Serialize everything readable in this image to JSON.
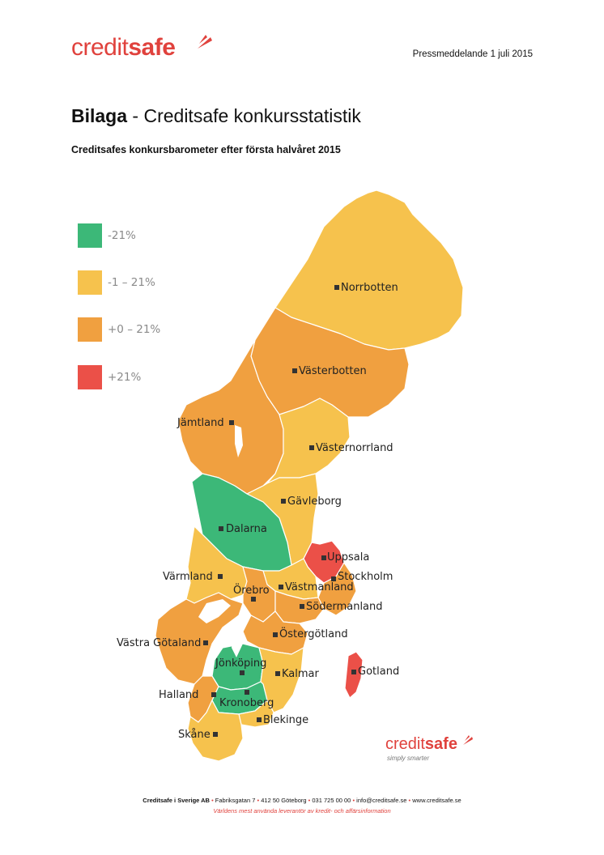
{
  "header": {
    "logo_regular": "credit",
    "logo_bold": "safe",
    "press_release": "Pressmeddelande 1 juli 2015"
  },
  "title": {
    "bold": "Bilaga",
    "rest": " - Creditsafe konkursstatistik"
  },
  "subtitle": "Creditsafes konkursbarometer efter första halvåret 2015",
  "colors": {
    "green": "#3cb878",
    "yellow": "#f6c24d",
    "orange": "#f0a040",
    "red": "#eb5048",
    "brand": "#e0423d"
  },
  "legend": [
    {
      "label": "-21%",
      "color": "#3cb878"
    },
    {
      "label": "-1 – 21%",
      "color": "#f6c24d"
    },
    {
      "label": "+0 – 21%",
      "color": "#f0a040"
    },
    {
      "label": "+21%",
      "color": "#eb5048"
    }
  ],
  "regions": [
    {
      "name": "Norrbotten",
      "category": "-1 – 21%"
    },
    {
      "name": "Västerbotten",
      "category": "+0 – 21%"
    },
    {
      "name": "Jämtland",
      "category": "+0 – 21%"
    },
    {
      "name": "Västernorrland",
      "category": "-1 – 21%"
    },
    {
      "name": "Gävleborg",
      "category": "-1 – 21%"
    },
    {
      "name": "Dalarna",
      "category": "-21%"
    },
    {
      "name": "Uppsala",
      "category": "+21%"
    },
    {
      "name": "Värmland",
      "category": "-1 – 21%"
    },
    {
      "name": "Stockholm",
      "category": "+0 – 21%"
    },
    {
      "name": "Örebro",
      "category": "+0 – 21%"
    },
    {
      "name": "Västmanland",
      "category": "-1 – 21%"
    },
    {
      "name": "Södermanland",
      "category": "+0 – 21%"
    },
    {
      "name": "Västra Götaland",
      "category": "+0 – 21%"
    },
    {
      "name": "Östergötland",
      "category": "+0 – 21%"
    },
    {
      "name": "Jönköping",
      "category": "-21%"
    },
    {
      "name": "Kalmar",
      "category": "-1 – 21%"
    },
    {
      "name": "Gotland",
      "category": "+21%"
    },
    {
      "name": "Halland",
      "category": "+0 – 21%"
    },
    {
      "name": "Kronoberg",
      "category": "-21%"
    },
    {
      "name": "Blekinge",
      "category": "-1 – 21%"
    },
    {
      "name": "Skåne",
      "category": "-1 – 21%"
    }
  ],
  "map_logo": {
    "regular": "credit",
    "bold": "safe",
    "tagline": "simply smarter"
  },
  "footer": {
    "company": "Creditsafe i Sverige AB",
    "address": "Fabriksgatan 7",
    "postal": "412 50 Göteborg",
    "phone": "031 725 00 00",
    "email": "info@creditsafe.se",
    "web": "www.creditsafe.se",
    "tagline": "Världens mest använda leverantör av kredit- och affärsinformation"
  }
}
